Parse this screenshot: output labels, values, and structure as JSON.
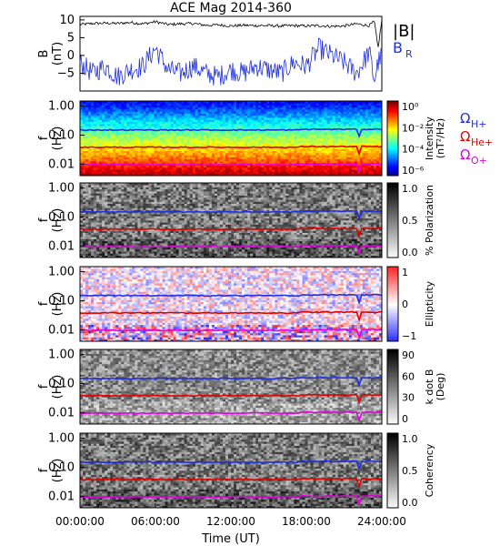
{
  "chart_data": [
    {
      "type": "line",
      "title": "ACE Mag 2014-360",
      "ylabel": "B",
      "yunit": "(nT)",
      "ylim": [
        -10,
        11
      ],
      "yticks": [
        10,
        5,
        0,
        -5
      ],
      "series": [
        {
          "name": "|B|",
          "color": "#000000",
          "x": [
            0,
            1,
            2,
            3,
            4,
            5,
            6,
            7,
            8,
            9,
            10,
            11,
            12,
            13,
            14,
            15,
            16,
            17,
            18,
            19,
            20,
            21,
            22,
            23,
            23.4,
            23.7,
            24
          ],
          "y": [
            8.7,
            9.0,
            9.1,
            9.0,
            9.3,
            8.9,
            9.5,
            8.7,
            8.9,
            9.0,
            8.5,
            8.6,
            8.3,
            8.5,
            8.4,
            8.4,
            8.3,
            8.4,
            8.3,
            8.4,
            8.2,
            8.3,
            8.9,
            8.4,
            9.6,
            2.0,
            10.0
          ]
        },
        {
          "name": "B",
          "sub": "R",
          "color": "#1f2fe0",
          "x": [
            0,
            1,
            2,
            3,
            4,
            5,
            6,
            7,
            8,
            9,
            10,
            11,
            12,
            13,
            14,
            15,
            16,
            17,
            18,
            19,
            20,
            21,
            22,
            23,
            23.4,
            23.7,
            24
          ],
          "y": [
            -2,
            -5,
            -3,
            -6,
            -4,
            -3,
            2,
            -4,
            -5,
            -3,
            -5,
            -6,
            -4,
            -5,
            -3,
            -4,
            -5,
            -2,
            -3,
            2,
            0,
            -2,
            -5,
            1,
            -7,
            -2,
            0
          ]
        }
      ]
    },
    {
      "type": "heatmap",
      "ylabel": "f",
      "yunit": "(Hz)",
      "colorbar": {
        "label": "Intensity",
        "unit": "(nT²/Hz)",
        "scale": "log",
        "ticks": [
          "10⁰",
          "10⁻²",
          "10⁻⁴",
          "10⁻⁶"
        ]
      },
      "gyro_lines": [
        {
          "name": "Ω",
          "sub": "H+",
          "color": "#1f2fe0",
          "hz": 0.15
        },
        {
          "name": "Ω",
          "sub": "He+",
          "color": "#e00000",
          "hz": 0.038
        },
        {
          "name": "Ω",
          "sub": "O+",
          "color": "#e000e0",
          "hz": 0.0095
        }
      ]
    },
    {
      "type": "heatmap",
      "ylabel": "f",
      "yunit": "(Hz)",
      "colorbar": {
        "label": "% Polarization",
        "unit": "",
        "scale": "linear",
        "ticks": [
          "1.0",
          "0.5",
          "0.0"
        ]
      }
    },
    {
      "type": "heatmap",
      "ylabel": "f",
      "yunit": "(Hz)",
      "colorbar": {
        "label": "Ellipticity",
        "unit": "",
        "scale": "linear",
        "ticks": [
          "1",
          "0",
          "−1"
        ]
      }
    },
    {
      "type": "heatmap",
      "ylabel": "f",
      "yunit": "(Hz)",
      "colorbar": {
        "label": "k dot B",
        "unit": "(Deg)",
        "scale": "linear",
        "ticks": [
          "90",
          "60",
          "30",
          "0"
        ]
      }
    },
    {
      "type": "heatmap",
      "ylabel": "f",
      "yunit": "(Hz)",
      "colorbar": {
        "label": "Coherency",
        "unit": "",
        "scale": "linear",
        "ticks": [
          "1.0",
          "0.5",
          "0.0"
        ]
      }
    }
  ],
  "freq_axis": {
    "ticks": [
      "1.00",
      "0.10",
      "0.01"
    ],
    "range": [
      0.004,
      1.5
    ],
    "scale": "log"
  },
  "time_axis": {
    "label": "Time (UT)",
    "ticks": [
      "00:00:00",
      "06:00:00",
      "12:00:00",
      "18:00:00",
      "24:00:00"
    ],
    "range_hours": [
      0,
      24
    ]
  }
}
